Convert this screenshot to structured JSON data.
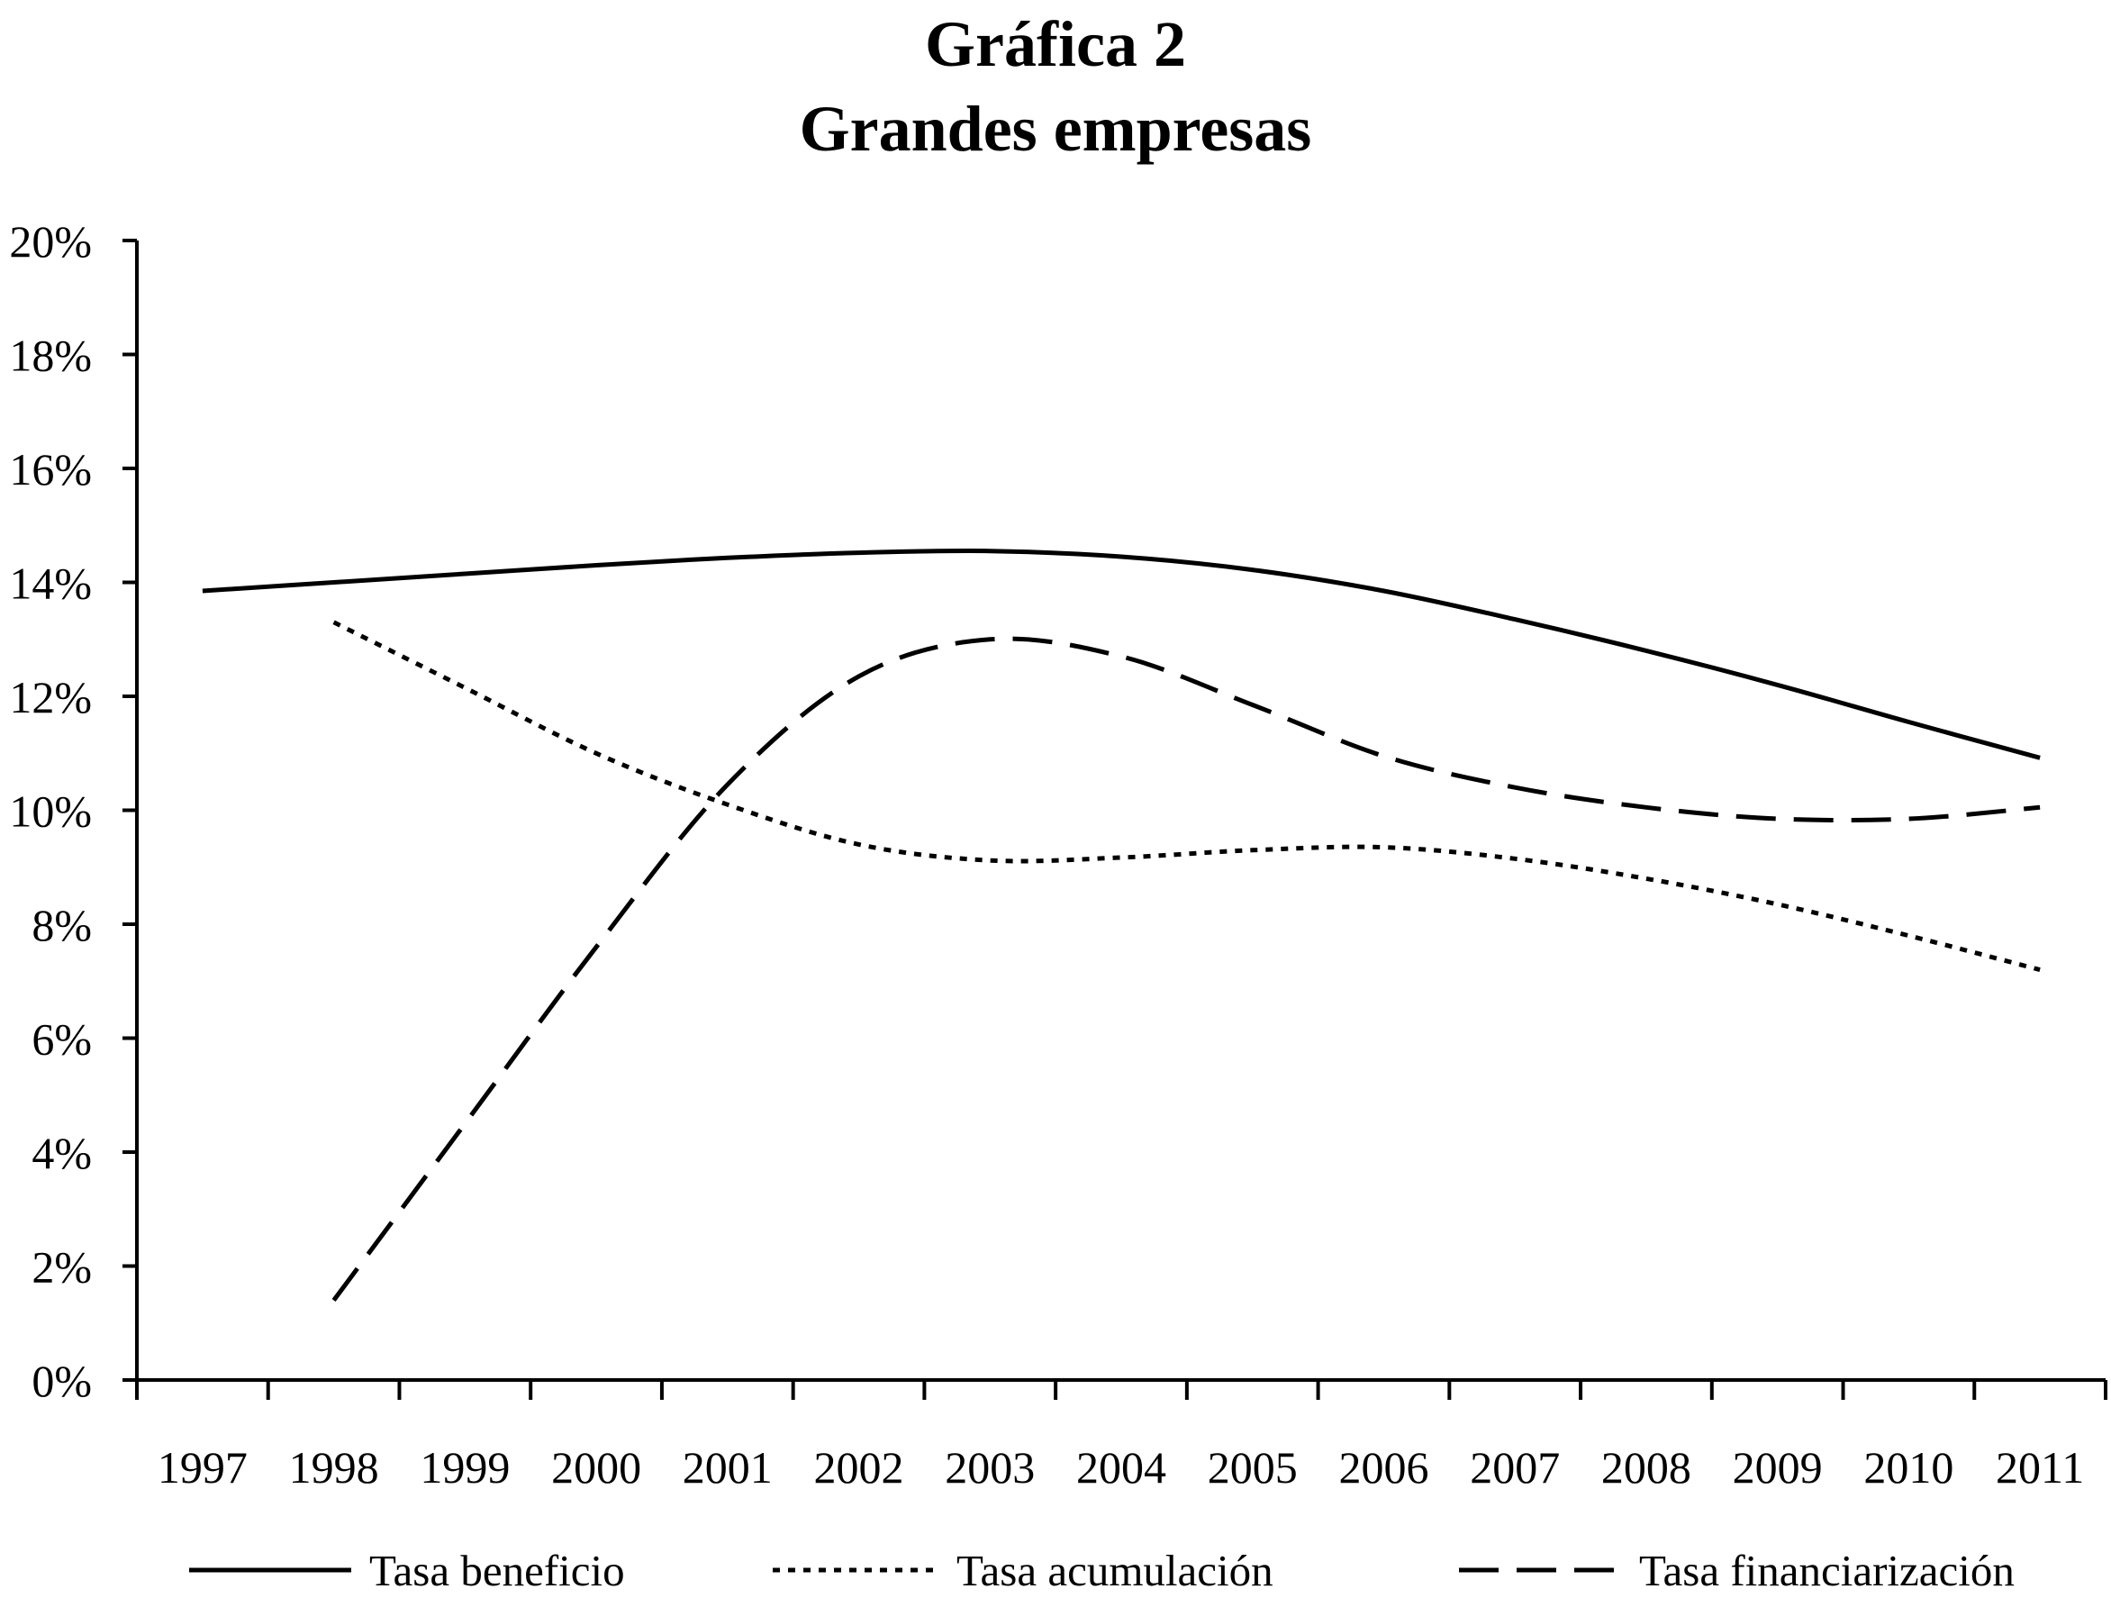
{
  "chart_data": {
    "type": "line",
    "title": "Gráfica 2",
    "subtitle": "Grandes empresas",
    "xlabel": "",
    "ylabel": "",
    "categories": [
      "1997",
      "1998",
      "1999",
      "2000",
      "2001",
      "2002",
      "2003",
      "2004",
      "2005",
      "2006",
      "2007",
      "2008",
      "2009",
      "2010",
      "2011"
    ],
    "ylim": [
      0,
      20
    ],
    "yticks": [
      0,
      2,
      4,
      6,
      8,
      10,
      12,
      14,
      16,
      18,
      20
    ],
    "ytick_labels": [
      "0%",
      "2%",
      "4%",
      "6%",
      "8%",
      "10%",
      "12%",
      "14%",
      "16%",
      "18%",
      "20%"
    ],
    "grid": false,
    "legend_position": "bottom",
    "series": [
      {
        "name": "Tasa beneficio",
        "style": "solid",
        "color": "#000000",
        "values": [
          13.85,
          14.0,
          14.15,
          14.3,
          14.43,
          14.52,
          14.55,
          14.45,
          14.22,
          13.85,
          13.35,
          12.8,
          12.2,
          11.55,
          10.92
        ]
      },
      {
        "name": "Tasa acumulación",
        "style": "dotted",
        "color": "#000000",
        "values": [
          null,
          13.3,
          12.15,
          11.0,
          10.1,
          9.4,
          9.12,
          9.17,
          9.3,
          9.35,
          9.15,
          8.8,
          8.35,
          7.8,
          7.2
        ]
      },
      {
        "name": "Tasa financiarización",
        "style": "dashed",
        "color": "#000000",
        "values": [
          null,
          1.4,
          4.5,
          7.6,
          10.45,
          12.35,
          13.0,
          12.7,
          11.85,
          10.95,
          10.4,
          10.05,
          9.85,
          9.85,
          10.05
        ]
      }
    ]
  }
}
